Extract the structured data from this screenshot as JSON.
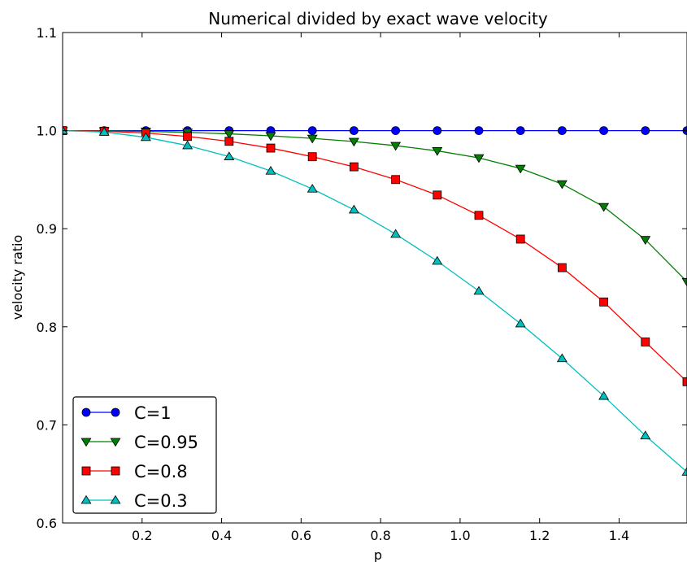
{
  "chart_data": {
    "type": "line",
    "title": "Numerical divided by exact wave velocity",
    "xlabel": "p",
    "ylabel": "velocity ratio",
    "xlim": [
      0,
      1.5708
    ],
    "ylim": [
      0.6,
      1.1
    ],
    "xticks": [
      "0.2",
      "0.4",
      "0.6",
      "0.8",
      "1.0",
      "1.2",
      "1.4"
    ],
    "yticks": [
      "0.6",
      "0.7",
      "0.8",
      "0.9",
      "1.0",
      "1.1"
    ],
    "grid": false,
    "legend_position": "lower-left",
    "x": [
      0.0,
      0.1047,
      0.2094,
      0.3142,
      0.4189,
      0.5236,
      0.6283,
      0.733,
      0.8378,
      0.9425,
      1.0472,
      1.1519,
      1.2566,
      1.3614,
      1.4661,
      1.5708
    ],
    "series": [
      {
        "name": "C=1",
        "color": "#0000ff",
        "marker": "circle",
        "values": [
          1.0,
          1.0,
          1.0,
          1.0,
          1.0,
          1.0,
          1.0,
          1.0,
          1.0,
          1.0,
          1.0,
          1.0,
          1.0,
          1.0,
          1.0,
          1.0
        ]
      },
      {
        "name": "C=0.95",
        "color": "#008000",
        "marker": "triangle-down",
        "values": [
          1.0,
          0.9998,
          0.9992,
          0.9982,
          0.9967,
          0.9947,
          0.9921,
          0.9889,
          0.9847,
          0.9794,
          0.9722,
          0.9614,
          0.9456,
          0.9224,
          0.8888,
          0.846
        ]
      },
      {
        "name": "C=0.8",
        "color": "#ff0000",
        "marker": "square",
        "values": [
          1.0,
          0.9994,
          0.9975,
          0.9941,
          0.9891,
          0.9822,
          0.9734,
          0.9631,
          0.9501,
          0.9343,
          0.9136,
          0.8894,
          0.8603,
          0.8253,
          0.7845,
          0.744
        ]
      },
      {
        "name": "C=0.3",
        "color": "#00bfbf",
        "marker": "triangle-up",
        "values": [
          1.0,
          0.9985,
          0.9932,
          0.9848,
          0.9735,
          0.9588,
          0.9406,
          0.9193,
          0.8945,
          0.867,
          0.8364,
          0.8032,
          0.7677,
          0.7293,
          0.689,
          0.652
        ]
      }
    ]
  }
}
